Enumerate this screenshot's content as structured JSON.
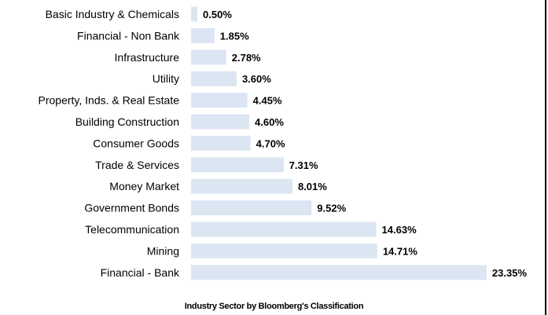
{
  "chart_data": {
    "type": "bar",
    "orientation": "horizontal",
    "caption": "Industry Sector by Bloomberg's Classification",
    "categories": [
      "Basic Industry & Chemicals",
      "Financial - Non Bank",
      "Infrastructure",
      "Utility",
      "Property, Inds. & Real Estate",
      "Building Construction",
      "Consumer Goods",
      "Trade & Services",
      "Money Market",
      "Government Bonds",
      "Telecommunication",
      "Mining",
      "Financial - Bank"
    ],
    "values": [
      0.5,
      1.85,
      2.78,
      3.6,
      4.45,
      4.6,
      4.7,
      7.31,
      8.01,
      9.52,
      14.63,
      14.71,
      23.35
    ],
    "value_labels": [
      "0.50%",
      "1.85%",
      "2.78%",
      "3.60%",
      "4.45%",
      "4.60%",
      "4.70%",
      "7.31%",
      "8.01%",
      "9.52%",
      "14.63%",
      "14.71%",
      "23.35%"
    ],
    "unit": "%",
    "grid": false,
    "legend": "none",
    "bar_color": "#dce6f2"
  }
}
